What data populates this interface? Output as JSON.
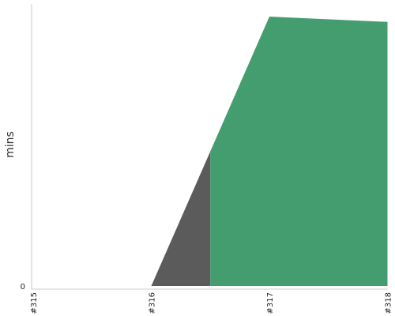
{
  "chart_data": {
    "type": "area",
    "ylabel": "mins",
    "x_categories": [
      "#315",
      "#316",
      "#317",
      "#318"
    ],
    "y_tick_labels": [
      "0"
    ],
    "ylim": [
      0,
      100
    ],
    "series": [
      {
        "color": "#5b5b5b",
        "points": [
          [
            0,
            0
          ],
          [
            1,
            0
          ],
          [
            1.5,
            50
          ],
          [
            1.5,
            0
          ]
        ]
      },
      {
        "color": "#449d6e",
        "points": [
          [
            1.5,
            0
          ],
          [
            1.5,
            50
          ],
          [
            2,
            100
          ],
          [
            3,
            98
          ],
          [
            3,
            0
          ]
        ]
      }
    ]
  }
}
